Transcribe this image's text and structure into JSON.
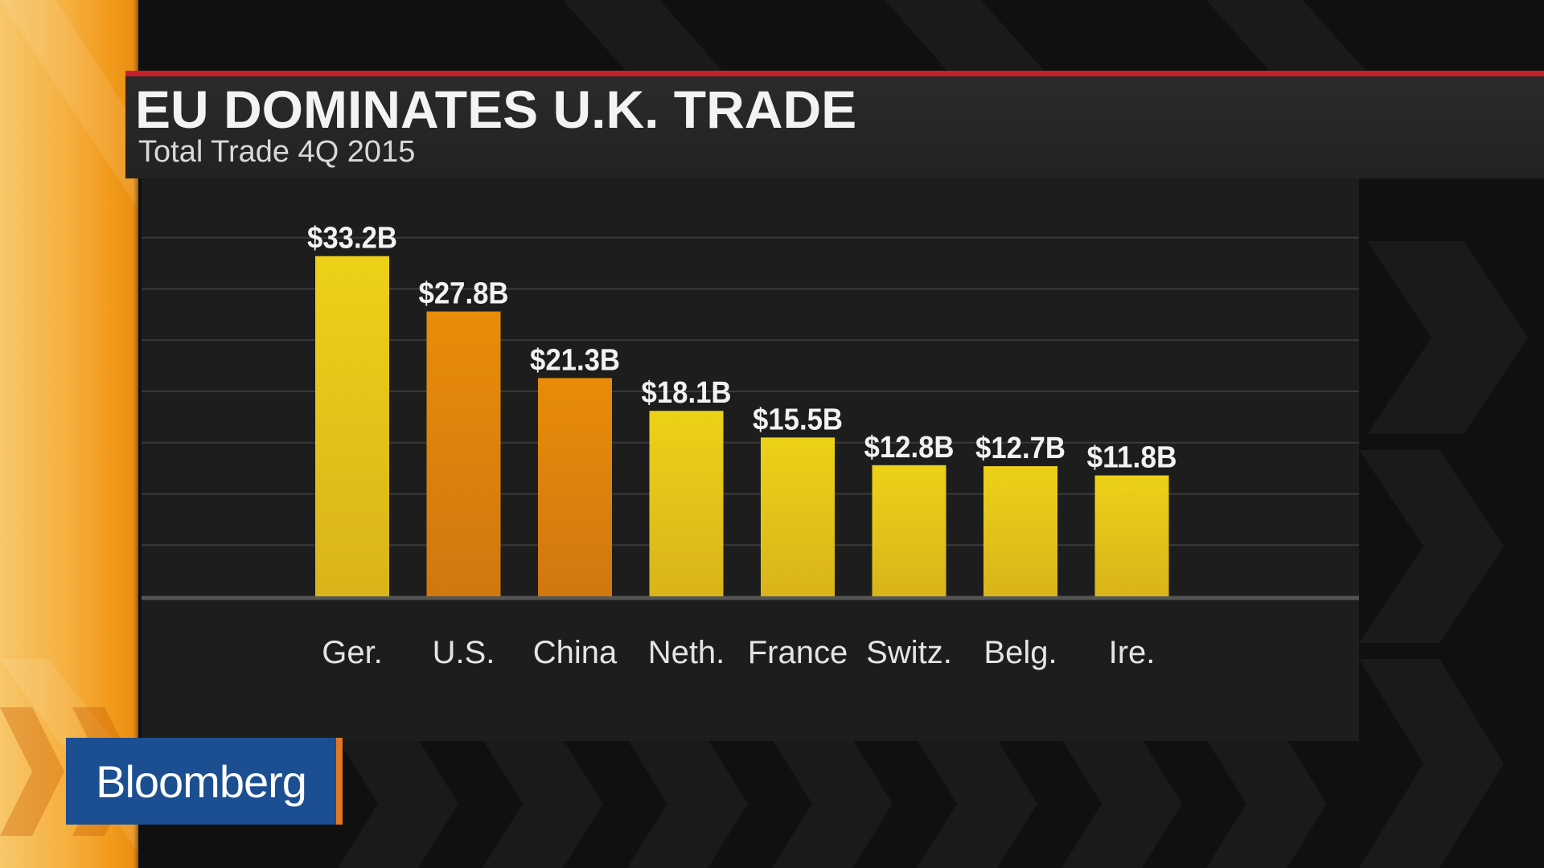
{
  "header": {
    "title": "EU DOMINATES U.K. TRADE",
    "subtitle": "Total Trade 4Q 2015"
  },
  "logo": {
    "text": "Bloomberg"
  },
  "colors": {
    "eu_bar": "#e6c516",
    "non_eu_bar": "#e0830a",
    "header_rule": "#c8212d",
    "logo_bg": "#1c4f91"
  },
  "chart_data": {
    "type": "bar",
    "title": "EU DOMINATES U.K. TRADE",
    "subtitle": "Total Trade 4Q 2015",
    "xlabel": "",
    "ylabel": "",
    "unit": "$B",
    "categories": [
      "Ger.",
      "U.S.",
      "China",
      "Neth.",
      "France",
      "Switz.",
      "Belg.",
      "Ire."
    ],
    "values": [
      33.2,
      27.8,
      21.3,
      18.1,
      15.5,
      12.8,
      12.7,
      11.8
    ],
    "data_labels": [
      "$33.2B",
      "$27.8B",
      "$21.3B",
      "$18.1B",
      "$15.5B",
      "$12.8B",
      "$12.7B",
      "$11.8B"
    ],
    "bar_groups": [
      "eu",
      "non_eu",
      "non_eu",
      "eu",
      "eu",
      "eu",
      "eu",
      "eu"
    ],
    "ylim": [
      0,
      40
    ],
    "grid": true,
    "legend": "none"
  }
}
